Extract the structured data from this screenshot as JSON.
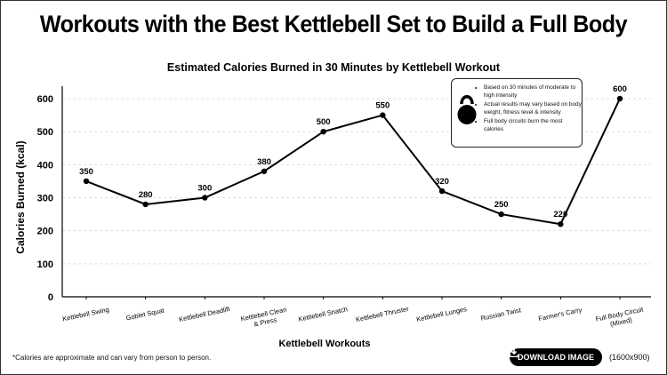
{
  "page_title": "Workouts with the Best Kettlebell Set to Build a Full Body",
  "chart_data": {
    "type": "line",
    "title": "Estimated Calories Burned in 30 Minutes by Kettlebell Workout",
    "xlabel": "Kettlebell Workouts",
    "ylabel": "Calories Burned (kcal)",
    "ylim": [
      0,
      600
    ],
    "yticks": [
      0,
      100,
      200,
      300,
      400,
      500,
      600
    ],
    "grid": true,
    "categories": [
      [
        "Kettlebell Swing"
      ],
      [
        "Goblet Squat"
      ],
      [
        "Kettlebell Deadlift"
      ],
      [
        "Kettlebell Clean",
        "& Press"
      ],
      [
        "Kettlebell Snatch"
      ],
      [
        "Kettlebell Thruster"
      ],
      [
        "Kettlebell Lunges"
      ],
      [
        "Russian Twist"
      ],
      [
        "Farmer's Carry"
      ],
      [
        "Full Body Circuit",
        "(Mixed)"
      ]
    ],
    "values": [
      350,
      280,
      300,
      380,
      500,
      550,
      320,
      250,
      220,
      600
    ],
    "color": "#000000"
  },
  "note": {
    "icon": "kettlebell-icon",
    "items": [
      "Based on 30 minutes of moderate to high intensity",
      "Actual results may vary based on body weight, fitness level & intensity",
      "Full body circuits burn the most calories"
    ]
  },
  "footnote": "*Calories are approximate and can vary from person to person.",
  "download": {
    "label": "DOWNLOAD IMAGE",
    "size": "(1600x900)",
    "icon": "download-icon"
  }
}
